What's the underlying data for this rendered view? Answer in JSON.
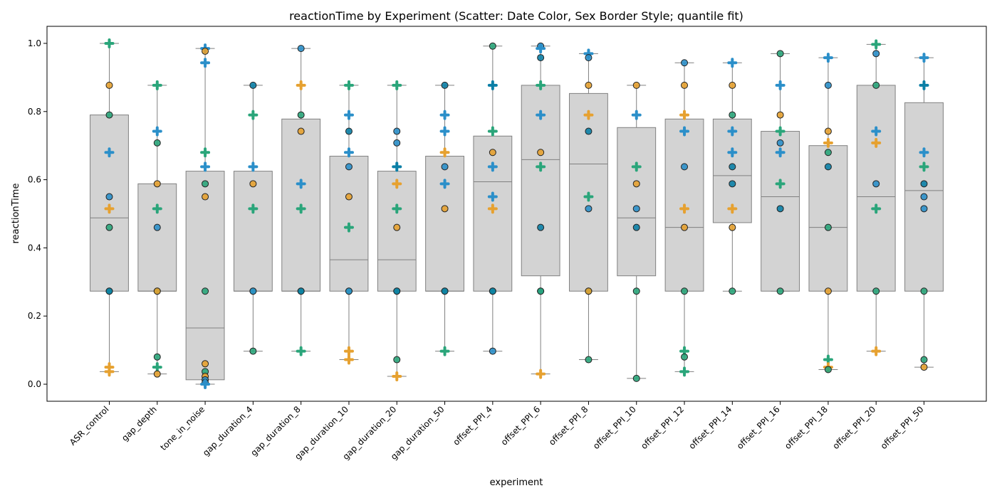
{
  "chart_data": {
    "type": "box",
    "title": "reactionTime by Experiment (Scatter: Date Color, Sex Border Style; quantile fit)",
    "xlabel": "experiment",
    "ylabel": "reactionTime",
    "ylim": [
      -0.05,
      1.05
    ],
    "yticks": [
      0.0,
      0.2,
      0.4,
      0.6,
      0.8,
      1.0
    ],
    "ytick_labels": [
      "0.0",
      "0.2",
      "0.4",
      "0.6",
      "0.8",
      "1.0"
    ],
    "grid": false,
    "colors": {
      "box_fill": "#d3d3d3",
      "box_edge": "#808080",
      "date_colors": [
        "#2b8fc9",
        "#e6a130",
        "#2aa57a",
        "#0b7fa6"
      ]
    },
    "categories": [
      "ASR_control",
      "gap_depth",
      "tone_in_noise",
      "gap_duration_4",
      "gap_duration_8",
      "gap_duration_10",
      "gap_duration_20",
      "gap_duration_50",
      "offset_PPI_4",
      "offset_PPI_6",
      "offset_PPI_8",
      "offset_PPI_10",
      "offset_PPI_12",
      "offset_PPI_14",
      "offset_PPI_16",
      "offset_PPI_18",
      "offset_PPI_20",
      "offset_PPI_50"
    ],
    "boxes": [
      {
        "whislo": 0.037,
        "q1": 0.273,
        "med": 0.488,
        "q3": 0.79,
        "whishi": 1.0
      },
      {
        "whislo": 0.03,
        "q1": 0.273,
        "med": 0.273,
        "q3": 0.588,
        "whishi": 0.877
      },
      {
        "whislo": 0.0,
        "q1": 0.013,
        "med": 0.165,
        "q3": 0.625,
        "whishi": 0.985
      },
      {
        "whislo": 0.097,
        "q1": 0.273,
        "med": 0.273,
        "q3": 0.625,
        "whishi": 0.877
      },
      {
        "whislo": 0.097,
        "q1": 0.273,
        "med": 0.273,
        "q3": 0.778,
        "whishi": 0.985
      },
      {
        "whislo": 0.072,
        "q1": 0.273,
        "med": 0.365,
        "q3": 0.669,
        "whishi": 0.877
      },
      {
        "whislo": 0.023,
        "q1": 0.273,
        "med": 0.365,
        "q3": 0.625,
        "whishi": 0.877
      },
      {
        "whislo": 0.097,
        "q1": 0.273,
        "med": 0.273,
        "q3": 0.669,
        "whishi": 0.877
      },
      {
        "whislo": 0.097,
        "q1": 0.273,
        "med": 0.594,
        "q3": 0.728,
        "whishi": 0.992
      },
      {
        "whislo": 0.03,
        "q1": 0.318,
        "med": 0.659,
        "q3": 0.877,
        "whishi": 0.992
      },
      {
        "whislo": 0.072,
        "q1": 0.273,
        "med": 0.646,
        "q3": 0.853,
        "whishi": 0.97
      },
      {
        "whislo": 0.017,
        "q1": 0.318,
        "med": 0.488,
        "q3": 0.753,
        "whishi": 0.877
      },
      {
        "whislo": 0.037,
        "q1": 0.273,
        "med": 0.46,
        "q3": 0.778,
        "whishi": 0.943
      },
      {
        "whislo": 0.273,
        "q1": 0.474,
        "med": 0.612,
        "q3": 0.778,
        "whishi": 0.943
      },
      {
        "whislo": 0.273,
        "q1": 0.273,
        "med": 0.55,
        "q3": 0.742,
        "whishi": 0.97
      },
      {
        "whislo": 0.043,
        "q1": 0.273,
        "med": 0.46,
        "q3": 0.7,
        "whishi": 0.958
      },
      {
        "whislo": 0.097,
        "q1": 0.273,
        "med": 0.55,
        "q3": 0.877,
        "whishi": 0.997
      },
      {
        "whislo": 0.05,
        "q1": 0.273,
        "med": 0.568,
        "q3": 0.826,
        "whishi": 0.958
      }
    ],
    "points": [
      [
        [
          1.0,
          2,
          "p"
        ],
        [
          0.877,
          1,
          "c"
        ],
        [
          0.79,
          2,
          "c"
        ],
        [
          0.68,
          0,
          "p"
        ],
        [
          0.55,
          0,
          "c"
        ],
        [
          0.515,
          1,
          "p"
        ],
        [
          0.46,
          2,
          "c"
        ],
        [
          0.273,
          2,
          "c"
        ],
        [
          0.273,
          3,
          "c"
        ],
        [
          0.05,
          1,
          "p"
        ],
        [
          0.037,
          1,
          "p"
        ]
      ],
      [
        [
          0.877,
          2,
          "p"
        ],
        [
          0.742,
          0,
          "p"
        ],
        [
          0.708,
          2,
          "c"
        ],
        [
          0.588,
          1,
          "c"
        ],
        [
          0.515,
          2,
          "p"
        ],
        [
          0.46,
          0,
          "c"
        ],
        [
          0.273,
          2,
          "c"
        ],
        [
          0.273,
          1,
          "c"
        ],
        [
          0.08,
          2,
          "c"
        ],
        [
          0.05,
          2,
          "p"
        ],
        [
          0.03,
          1,
          "c"
        ]
      ],
      [
        [
          0.985,
          0,
          "p"
        ],
        [
          0.977,
          1,
          "c"
        ],
        [
          0.943,
          0,
          "p"
        ],
        [
          0.68,
          2,
          "p"
        ],
        [
          0.638,
          0,
          "p"
        ],
        [
          0.588,
          2,
          "c"
        ],
        [
          0.55,
          1,
          "c"
        ],
        [
          0.273,
          2,
          "c"
        ],
        [
          0.06,
          1,
          "c"
        ],
        [
          0.037,
          2,
          "c"
        ],
        [
          0.023,
          1,
          "c"
        ],
        [
          0.013,
          0,
          "c"
        ],
        [
          0.005,
          0,
          "c"
        ],
        [
          0.0,
          0,
          "p"
        ]
      ],
      [
        [
          0.877,
          3,
          "c"
        ],
        [
          0.79,
          2,
          "p"
        ],
        [
          0.638,
          0,
          "p"
        ],
        [
          0.588,
          1,
          "c"
        ],
        [
          0.515,
          2,
          "p"
        ],
        [
          0.273,
          2,
          "c"
        ],
        [
          0.273,
          0,
          "c"
        ],
        [
          0.097,
          2,
          "c"
        ]
      ],
      [
        [
          0.985,
          0,
          "c"
        ],
        [
          0.877,
          1,
          "p"
        ],
        [
          0.79,
          2,
          "c"
        ],
        [
          0.742,
          1,
          "c"
        ],
        [
          0.588,
          0,
          "p"
        ],
        [
          0.515,
          2,
          "p"
        ],
        [
          0.273,
          2,
          "c"
        ],
        [
          0.273,
          3,
          "c"
        ],
        [
          0.097,
          2,
          "p"
        ]
      ],
      [
        [
          0.877,
          2,
          "p"
        ],
        [
          0.79,
          0,
          "p"
        ],
        [
          0.742,
          3,
          "c"
        ],
        [
          0.68,
          0,
          "p"
        ],
        [
          0.638,
          0,
          "c"
        ],
        [
          0.55,
          1,
          "c"
        ],
        [
          0.46,
          2,
          "p"
        ],
        [
          0.273,
          2,
          "c"
        ],
        [
          0.273,
          0,
          "c"
        ],
        [
          0.097,
          1,
          "p"
        ],
        [
          0.072,
          1,
          "p"
        ]
      ],
      [
        [
          0.877,
          2,
          "p"
        ],
        [
          0.742,
          0,
          "c"
        ],
        [
          0.708,
          0,
          "c"
        ],
        [
          0.638,
          3,
          "p"
        ],
        [
          0.588,
          1,
          "p"
        ],
        [
          0.515,
          2,
          "p"
        ],
        [
          0.46,
          1,
          "c"
        ],
        [
          0.273,
          2,
          "c"
        ],
        [
          0.273,
          3,
          "c"
        ],
        [
          0.072,
          2,
          "c"
        ],
        [
          0.023,
          1,
          "p"
        ]
      ],
      [
        [
          0.877,
          3,
          "c"
        ],
        [
          0.79,
          0,
          "p"
        ],
        [
          0.742,
          0,
          "p"
        ],
        [
          0.68,
          1,
          "p"
        ],
        [
          0.638,
          0,
          "c"
        ],
        [
          0.588,
          0,
          "p"
        ],
        [
          0.515,
          1,
          "c"
        ],
        [
          0.273,
          2,
          "c"
        ],
        [
          0.273,
          3,
          "c"
        ],
        [
          0.097,
          2,
          "p"
        ]
      ],
      [
        [
          0.992,
          2,
          "c"
        ],
        [
          0.877,
          3,
          "p"
        ],
        [
          0.742,
          2,
          "p"
        ],
        [
          0.68,
          1,
          "c"
        ],
        [
          0.638,
          0,
          "p"
        ],
        [
          0.55,
          0,
          "p"
        ],
        [
          0.515,
          1,
          "p"
        ],
        [
          0.273,
          2,
          "c"
        ],
        [
          0.273,
          3,
          "c"
        ],
        [
          0.097,
          0,
          "c"
        ]
      ],
      [
        [
          0.992,
          0,
          "c"
        ],
        [
          0.985,
          0,
          "p"
        ],
        [
          0.958,
          3,
          "c"
        ],
        [
          0.877,
          2,
          "p"
        ],
        [
          0.79,
          0,
          "p"
        ],
        [
          0.68,
          1,
          "c"
        ],
        [
          0.638,
          2,
          "p"
        ],
        [
          0.46,
          3,
          "c"
        ],
        [
          0.273,
          3,
          "c"
        ],
        [
          0.273,
          2,
          "c"
        ],
        [
          0.03,
          1,
          "p"
        ]
      ],
      [
        [
          0.97,
          0,
          "p"
        ],
        [
          0.958,
          0,
          "c"
        ],
        [
          0.877,
          1,
          "c"
        ],
        [
          0.79,
          1,
          "p"
        ],
        [
          0.742,
          3,
          "c"
        ],
        [
          0.55,
          2,
          "p"
        ],
        [
          0.515,
          0,
          "c"
        ],
        [
          0.273,
          2,
          "c"
        ],
        [
          0.273,
          1,
          "c"
        ],
        [
          0.072,
          2,
          "c"
        ]
      ],
      [
        [
          0.877,
          1,
          "c"
        ],
        [
          0.79,
          0,
          "p"
        ],
        [
          0.638,
          2,
          "p"
        ],
        [
          0.588,
          1,
          "c"
        ],
        [
          0.515,
          0,
          "c"
        ],
        [
          0.46,
          3,
          "c"
        ],
        [
          0.273,
          2,
          "c"
        ],
        [
          0.017,
          2,
          "c"
        ]
      ],
      [
        [
          0.943,
          0,
          "c"
        ],
        [
          0.877,
          1,
          "c"
        ],
        [
          0.79,
          1,
          "p"
        ],
        [
          0.742,
          0,
          "p"
        ],
        [
          0.638,
          0,
          "c"
        ],
        [
          0.515,
          1,
          "p"
        ],
        [
          0.46,
          1,
          "c"
        ],
        [
          0.273,
          2,
          "c"
        ],
        [
          0.097,
          2,
          "p"
        ],
        [
          0.08,
          2,
          "c"
        ],
        [
          0.037,
          2,
          "p"
        ]
      ],
      [
        [
          0.943,
          0,
          "p"
        ],
        [
          0.877,
          1,
          "c"
        ],
        [
          0.79,
          2,
          "c"
        ],
        [
          0.742,
          0,
          "p"
        ],
        [
          0.68,
          0,
          "p"
        ],
        [
          0.638,
          3,
          "c"
        ],
        [
          0.588,
          3,
          "c"
        ],
        [
          0.515,
          1,
          "p"
        ],
        [
          0.46,
          1,
          "c"
        ],
        [
          0.273,
          2,
          "c"
        ]
      ],
      [
        [
          0.97,
          2,
          "c"
        ],
        [
          0.877,
          0,
          "p"
        ],
        [
          0.79,
          1,
          "c"
        ],
        [
          0.742,
          2,
          "p"
        ],
        [
          0.708,
          0,
          "c"
        ],
        [
          0.68,
          0,
          "p"
        ],
        [
          0.588,
          2,
          "p"
        ],
        [
          0.515,
          3,
          "c"
        ],
        [
          0.273,
          2,
          "c"
        ]
      ],
      [
        [
          0.958,
          0,
          "p"
        ],
        [
          0.877,
          0,
          "c"
        ],
        [
          0.742,
          1,
          "c"
        ],
        [
          0.708,
          1,
          "p"
        ],
        [
          0.68,
          2,
          "c"
        ],
        [
          0.638,
          3,
          "c"
        ],
        [
          0.46,
          2,
          "c"
        ],
        [
          0.273,
          1,
          "c"
        ],
        [
          0.072,
          2,
          "p"
        ],
        [
          0.05,
          1,
          "p"
        ],
        [
          0.043,
          2,
          "c"
        ]
      ],
      [
        [
          0.997,
          2,
          "p"
        ],
        [
          0.97,
          0,
          "c"
        ],
        [
          0.877,
          2,
          "c"
        ],
        [
          0.742,
          0,
          "p"
        ],
        [
          0.708,
          1,
          "p"
        ],
        [
          0.588,
          0,
          "c"
        ],
        [
          0.515,
          2,
          "p"
        ],
        [
          0.273,
          2,
          "c"
        ],
        [
          0.097,
          1,
          "p"
        ]
      ],
      [
        [
          0.958,
          0,
          "p"
        ],
        [
          0.877,
          3,
          "p"
        ],
        [
          0.68,
          0,
          "p"
        ],
        [
          0.638,
          2,
          "p"
        ],
        [
          0.588,
          3,
          "c"
        ],
        [
          0.55,
          0,
          "c"
        ],
        [
          0.515,
          0,
          "c"
        ],
        [
          0.273,
          2,
          "c"
        ],
        [
          0.072,
          2,
          "c"
        ],
        [
          0.05,
          1,
          "c"
        ]
      ]
    ]
  }
}
